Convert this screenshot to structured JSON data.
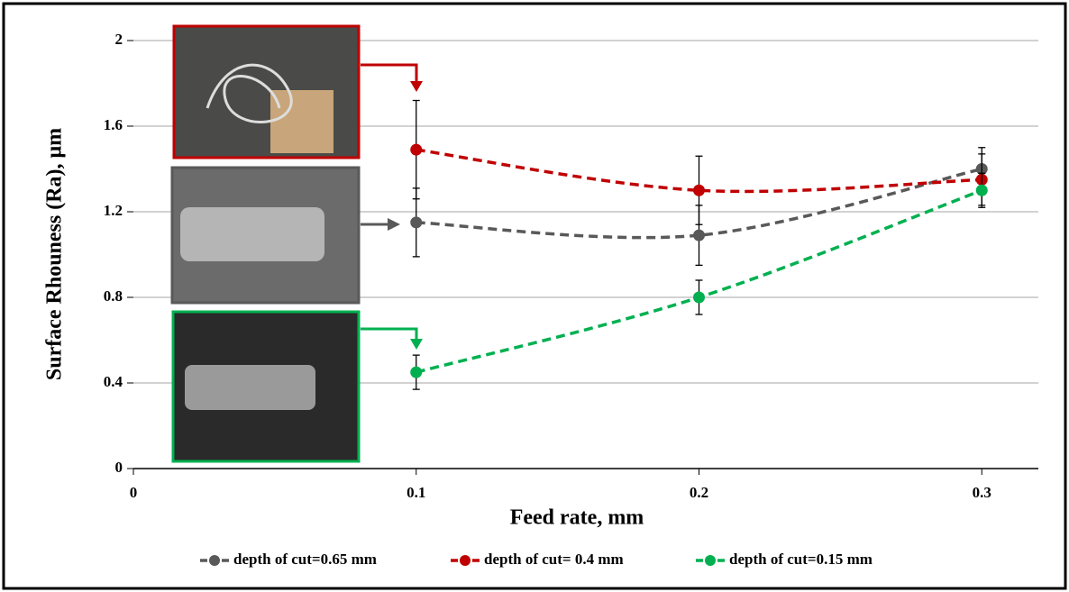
{
  "chart_data": {
    "type": "line",
    "x_label": "Feed rate, mm",
    "y_label": "Surface Rhouness (Ra), μm",
    "x": [
      0.1,
      0.2,
      0.3
    ],
    "series": [
      {
        "name": "depth of cut=0.65 mm",
        "color": "#595959",
        "values": [
          1.15,
          1.09,
          1.4
        ],
        "errors": [
          0.16,
          0.14,
          0.1
        ]
      },
      {
        "name": "depth of cut= 0.4 mm",
        "color": "#c00000",
        "values": [
          1.49,
          1.3,
          1.35
        ],
        "errors": [
          0.23,
          0.16,
          0.12
        ]
      },
      {
        "name": "depth of cut=0.15 mm",
        "color": "#00b050",
        "values": [
          0.45,
          0.8,
          1.3
        ],
        "errors": [
          0.08,
          0.08,
          0.08
        ]
      }
    ],
    "xlim": [
      0,
      0.32
    ],
    "xticks": [
      0,
      0.1,
      0.2,
      0.3
    ],
    "ylim": [
      0,
      2
    ],
    "yticks": [
      0,
      0.4,
      0.8,
      1.2,
      1.6,
      2
    ],
    "grid": true,
    "smooth": true,
    "dashed": true,
    "legend": "bottom"
  }
}
